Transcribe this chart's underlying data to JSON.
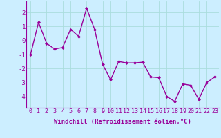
{
  "x": [
    0,
    1,
    2,
    3,
    4,
    5,
    6,
    7,
    8,
    9,
    10,
    11,
    12,
    13,
    14,
    15,
    16,
    17,
    18,
    19,
    20,
    21,
    22,
    23
  ],
  "y": [
    -1.0,
    1.3,
    -0.2,
    -0.6,
    -0.5,
    0.8,
    0.3,
    2.3,
    0.8,
    -1.7,
    -2.8,
    -1.5,
    -1.6,
    -1.6,
    -1.55,
    -2.6,
    -2.65,
    -4.0,
    -4.35,
    -3.1,
    -3.2,
    -4.2,
    -3.0,
    -2.6
  ],
  "line_color": "#990099",
  "marker": "D",
  "marker_size": 2.0,
  "linewidth": 1.0,
  "bg_color": "#cceeff",
  "grid_color": "#aadddd",
  "xlabel": "Windchill (Refroidissement éolien,°C)",
  "xlabel_fontsize": 6.5,
  "xlabel_color": "#990099",
  "tick_color": "#990099",
  "tick_fontsize": 6.0,
  "ylim": [
    -4.8,
    2.8
  ],
  "yticks": [
    -4,
    -3,
    -2,
    -1,
    0,
    1,
    2
  ],
  "xticks": [
    0,
    1,
    2,
    3,
    4,
    5,
    6,
    7,
    8,
    9,
    10,
    11,
    12,
    13,
    14,
    15,
    16,
    17,
    18,
    19,
    20,
    21,
    22,
    23
  ]
}
